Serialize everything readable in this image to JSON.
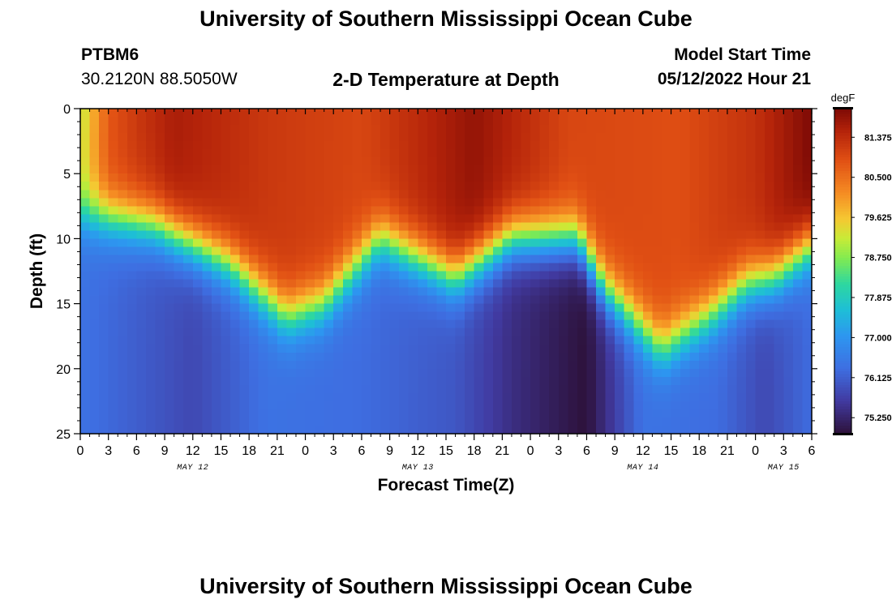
{
  "header": {
    "title": "University of Southern Mississippi Ocean Cube",
    "station_id": "PTBM6",
    "station_coords": "30.2120N  88.5050W",
    "plot_title": "2-D Temperature at Depth",
    "model_start_label": "Model Start Time",
    "model_start_value": "05/12/2022 Hour 21"
  },
  "footer": {
    "title": "University of Southern Mississippi Ocean Cube"
  },
  "colors": {
    "background": "#ffffff",
    "text": "#000000"
  },
  "chart_data": {
    "type": "heatmap",
    "title": "2-D Temperature at Depth",
    "xlabel": "Forecast Time(Z)",
    "ylabel": "Depth (ft)",
    "x_start_hour": 0,
    "x_end_hour": 78,
    "x_ticks": [
      {
        "hour": 0,
        "label": "0"
      },
      {
        "hour": 3,
        "label": "3"
      },
      {
        "hour": 6,
        "label": "6"
      },
      {
        "hour": 9,
        "label": "9"
      },
      {
        "hour": 12,
        "label": "12"
      },
      {
        "hour": 15,
        "label": "15"
      },
      {
        "hour": 18,
        "label": "18"
      },
      {
        "hour": 21,
        "label": "21"
      },
      {
        "hour": 24,
        "label": "0"
      },
      {
        "hour": 27,
        "label": "3"
      },
      {
        "hour": 30,
        "label": "6"
      },
      {
        "hour": 33,
        "label": "9"
      },
      {
        "hour": 36,
        "label": "12"
      },
      {
        "hour": 39,
        "label": "15"
      },
      {
        "hour": 42,
        "label": "18"
      },
      {
        "hour": 45,
        "label": "21"
      },
      {
        "hour": 48,
        "label": "0"
      },
      {
        "hour": 51,
        "label": "3"
      },
      {
        "hour": 54,
        "label": "6"
      },
      {
        "hour": 57,
        "label": "9"
      },
      {
        "hour": 60,
        "label": "12"
      },
      {
        "hour": 63,
        "label": "15"
      },
      {
        "hour": 66,
        "label": "18"
      },
      {
        "hour": 69,
        "label": "21"
      },
      {
        "hour": 72,
        "label": "0"
      },
      {
        "hour": 75,
        "label": "3"
      },
      {
        "hour": 78,
        "label": "6"
      }
    ],
    "date_labels": [
      {
        "hour": 12,
        "label": "MAY 12"
      },
      {
        "hour": 36,
        "label": "MAY 13"
      },
      {
        "hour": 60,
        "label": "MAY 14"
      },
      {
        "hour": 75,
        "label": "MAY 15"
      }
    ],
    "y_ticks": [
      {
        "depth": 0,
        "label": "0"
      },
      {
        "depth": 5,
        "label": "5"
      },
      {
        "depth": 10,
        "label": "10"
      },
      {
        "depth": 15,
        "label": "15"
      },
      {
        "depth": 20,
        "label": "20"
      },
      {
        "depth": 25,
        "label": "25"
      }
    ],
    "ylim": [
      0,
      25
    ],
    "colorbar": {
      "unit": "degF",
      "min": 74.9,
      "max": 82.0,
      "ticks": [
        "81.375",
        "80.500",
        "79.625",
        "78.750",
        "77.875",
        "77.000",
        "76.125",
        "75.250"
      ]
    },
    "thermocline_depth_ft": [
      {
        "hour": 0,
        "depth": 8.0
      },
      {
        "hour": 8,
        "depth": 9.0
      },
      {
        "hour": 16,
        "depth": 12.0
      },
      {
        "hour": 22,
        "depth": 16.0
      },
      {
        "hour": 26,
        "depth": 15.0
      },
      {
        "hour": 32,
        "depth": 10.0
      },
      {
        "hour": 40,
        "depth": 13.0
      },
      {
        "hour": 46,
        "depth": 10.0
      },
      {
        "hour": 53,
        "depth": 10.0
      },
      {
        "hour": 56,
        "depth": 14.0
      },
      {
        "hour": 62,
        "depth": 18.5
      },
      {
        "hour": 67,
        "depth": 16.0
      },
      {
        "hour": 71,
        "depth": 13.5
      },
      {
        "hour": 74,
        "depth": 13.0
      },
      {
        "hour": 78,
        "depth": 10.5
      }
    ],
    "surface_temp_degF": [
      {
        "hour": 0,
        "temp": 79.3
      },
      {
        "hour": 3,
        "temp": 80.9
      },
      {
        "hour": 10,
        "temp": 81.6
      },
      {
        "hour": 20,
        "temp": 81.2
      },
      {
        "hour": 30,
        "temp": 81.0
      },
      {
        "hour": 42,
        "temp": 81.8
      },
      {
        "hour": 52,
        "temp": 81.0
      },
      {
        "hour": 64,
        "temp": 80.9
      },
      {
        "hour": 72,
        "temp": 81.3
      },
      {
        "hour": 78,
        "temp": 82.0
      }
    ],
    "deep_temp_degF": [
      {
        "hour": 0,
        "temp": 76.4
      },
      {
        "hour": 12,
        "temp": 75.8
      },
      {
        "hour": 20,
        "temp": 76.4
      },
      {
        "hour": 30,
        "temp": 76.3
      },
      {
        "hour": 40,
        "temp": 76.0
      },
      {
        "hour": 46,
        "temp": 75.4
      },
      {
        "hour": 54,
        "temp": 74.9
      },
      {
        "hour": 60,
        "temp": 76.4
      },
      {
        "hour": 68,
        "temp": 76.3
      },
      {
        "hour": 73,
        "temp": 75.8
      },
      {
        "hour": 78,
        "temp": 76.3
      }
    ]
  }
}
